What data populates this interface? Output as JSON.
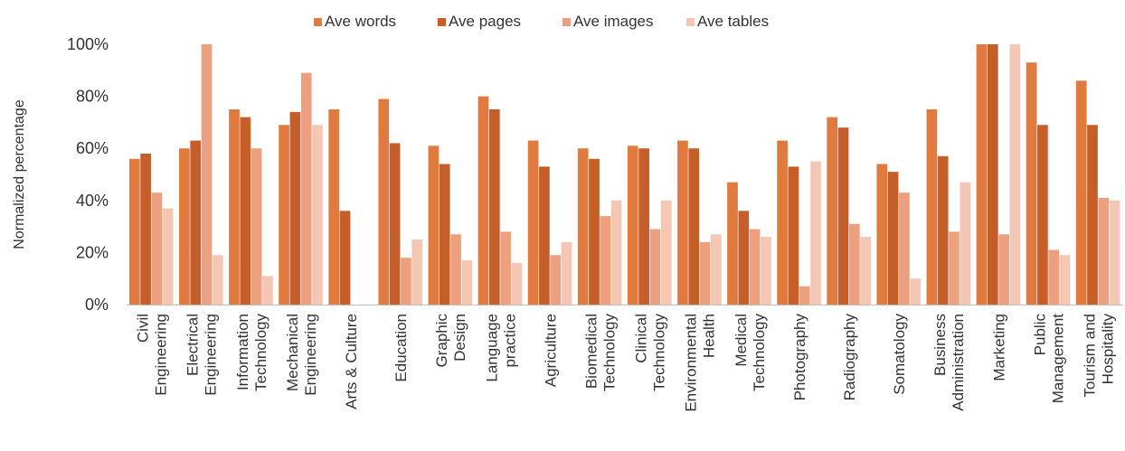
{
  "colors": {
    "Ave words": "#E07A3E",
    "Ave pages": "#C65E2A",
    "Ave images": "#EDA07F",
    "Ave tables": "#F4C7B4",
    "axis": "#BFBFBF",
    "text": "#333333"
  },
  "chart_data": {
    "type": "bar",
    "title": "",
    "xlabel": "",
    "ylabel": "Normalized percentage",
    "ylim": [
      0,
      100
    ],
    "yticks": [
      "0%",
      "20%",
      "40%",
      "60%",
      "80%",
      "100%"
    ],
    "grid": false,
    "legend_position": "top",
    "categories": [
      "Civil Engineering",
      "Electrical Engineering",
      "Information Technology",
      "Mechanical Engineering",
      "Arts & Culture",
      "Education",
      "Graphic Design",
      "Language practice",
      "Agriculture",
      "Biomedical Technology",
      "Clinical Technology",
      "Environmental Health",
      "Medical Technology",
      "Photography",
      "Radiography",
      "Somatology",
      "Business Administration",
      "Marketing",
      "Public Management",
      "Tourism and Hospitality"
    ],
    "category_label_lines": [
      [
        "Civil",
        "Engineering"
      ],
      [
        "Electrical",
        "Engineering"
      ],
      [
        "Information",
        "Technology"
      ],
      [
        "Mechanical",
        "Engineering"
      ],
      [
        "Arts & Culture"
      ],
      [
        "Education"
      ],
      [
        "Graphic",
        "Design"
      ],
      [
        "Language",
        "practice"
      ],
      [
        "Agriculture"
      ],
      [
        "Biomedical",
        "Technology"
      ],
      [
        "Clinical",
        "Technology"
      ],
      [
        "Environmental",
        "Health"
      ],
      [
        "Medical",
        "Technology"
      ],
      [
        "Photography"
      ],
      [
        "Radiography"
      ],
      [
        "Somatology"
      ],
      [
        "Business",
        "Administration"
      ],
      [
        "Marketing"
      ],
      [
        "Public",
        "Management"
      ],
      [
        "Tourism and",
        "Hospitality"
      ]
    ],
    "series": [
      {
        "name": "Ave words",
        "values": [
          56,
          60,
          75,
          69,
          75,
          79,
          61,
          80,
          63,
          60,
          61,
          63,
          47,
          63,
          72,
          54,
          75,
          100,
          93,
          86
        ]
      },
      {
        "name": "Ave pages",
        "values": [
          58,
          63,
          72,
          74,
          36,
          62,
          54,
          75,
          53,
          56,
          60,
          60,
          36,
          53,
          68,
          51,
          57,
          100,
          69,
          69
        ]
      },
      {
        "name": "Ave images",
        "values": [
          43,
          100,
          60,
          89,
          0,
          18,
          27,
          28,
          19,
          34,
          29,
          24,
          29,
          7,
          31,
          43,
          28,
          27,
          21,
          41
        ]
      },
      {
        "name": "Ave tables",
        "values": [
          37,
          19,
          11,
          69,
          0,
          25,
          17,
          16,
          24,
          40,
          40,
          27,
          26,
          55,
          26,
          10,
          47,
          100,
          19,
          40
        ]
      }
    ]
  }
}
